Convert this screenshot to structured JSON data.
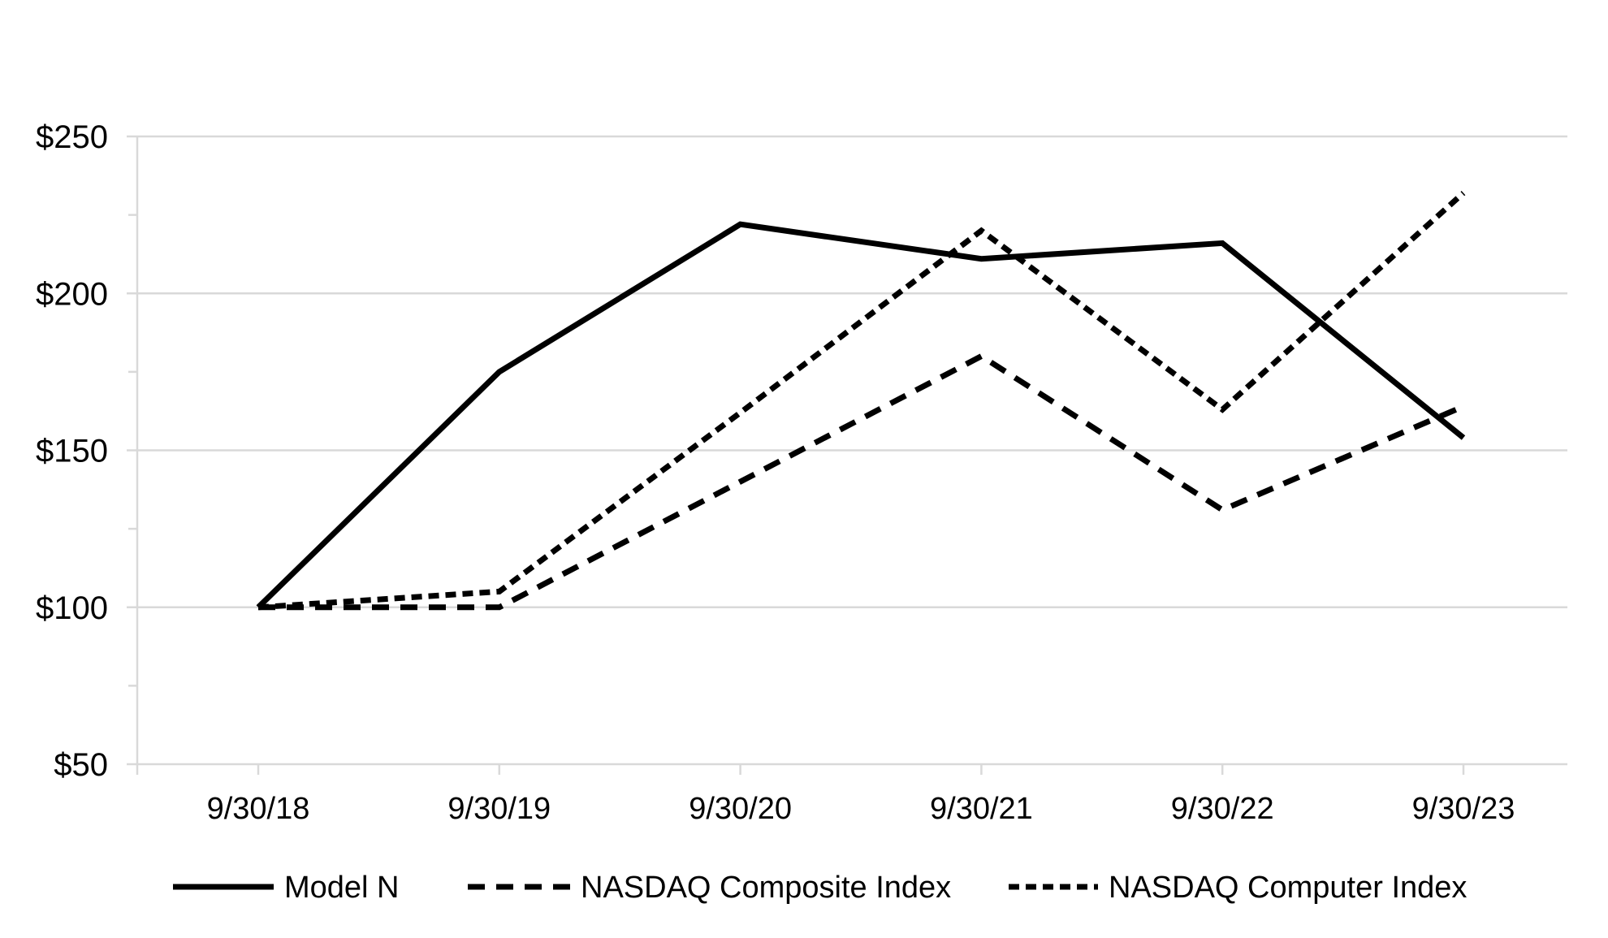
{
  "chart_data": {
    "type": "line",
    "title": "",
    "x_categories": [
      "9/30/18",
      "9/30/19",
      "9/30/20",
      "9/30/21",
      "9/30/22",
      "9/30/23"
    ],
    "series": [
      {
        "name": "Model N",
        "style": "solid",
        "values": [
          100,
          175,
          222,
          211,
          216,
          154
        ]
      },
      {
        "name": "NASDAQ Composite Index",
        "style": "long-dash",
        "values": [
          100,
          100,
          140,
          180,
          131,
          164
        ]
      },
      {
        "name": "NASDAQ Computer Index",
        "style": "short-dash",
        "values": [
          100,
          105,
          162,
          220,
          163,
          232
        ]
      }
    ],
    "y_axis": {
      "min": 50,
      "max": 250,
      "major_step": 50,
      "minor_step": 25,
      "tick_values": [
        50,
        100,
        150,
        200,
        250
      ],
      "tick_labels": [
        "$50",
        "$100",
        "$150",
        "$200",
        "$250"
      ]
    },
    "grid": "horizontal-major-only",
    "legend_position": "bottom",
    "line_color": "#000000",
    "gridline_color": "#d9d9d9",
    "background_color": "#ffffff"
  }
}
